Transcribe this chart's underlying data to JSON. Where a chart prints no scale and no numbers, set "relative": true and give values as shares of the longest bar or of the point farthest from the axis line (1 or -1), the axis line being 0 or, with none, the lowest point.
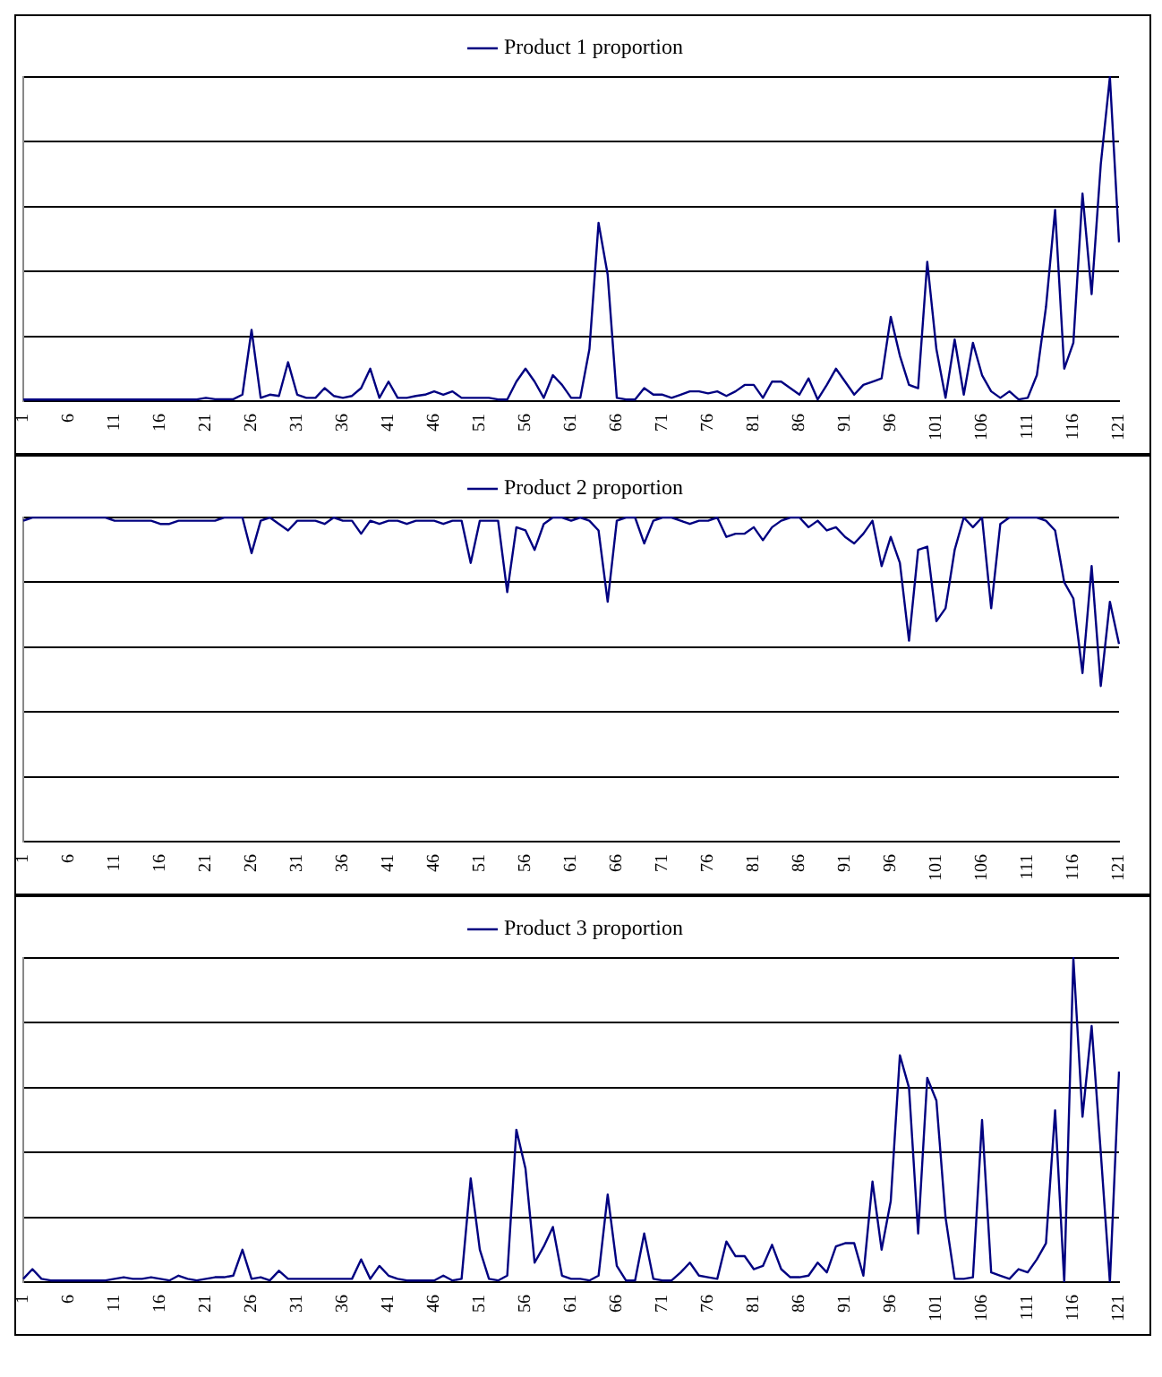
{
  "chart_data": [
    {
      "type": "line",
      "relative": true,
      "grid": "y",
      "legend": "top",
      "categories": [
        "1",
        null,
        null,
        null,
        null,
        "6",
        null,
        null,
        null,
        null,
        "11",
        null,
        null,
        null,
        null,
        "16",
        null,
        null,
        null,
        null,
        "21",
        null,
        null,
        null,
        null,
        "26",
        null,
        null,
        null,
        null,
        "31",
        null,
        null,
        null,
        null,
        "36",
        null,
        null,
        null,
        null,
        "41",
        null,
        null,
        null,
        null,
        "46",
        null,
        null,
        null,
        null,
        "51",
        null,
        null,
        null,
        null,
        "56",
        null,
        null,
        null,
        null,
        "61",
        null,
        null,
        null,
        null,
        "66",
        null,
        null,
        null,
        null,
        "71",
        null,
        null,
        null,
        null,
        "76",
        null,
        null,
        null,
        null,
        "81",
        null,
        null,
        null,
        null,
        "86",
        null,
        null,
        null,
        null,
        "91",
        null,
        null,
        null,
        null,
        "96",
        null,
        null,
        null,
        null,
        "101",
        null,
        null,
        null,
        null,
        "106",
        null,
        null,
        null,
        null,
        "111",
        null,
        null,
        null,
        null,
        "116",
        null,
        null,
        null,
        null,
        "121"
      ],
      "series": [
        {
          "name": "Product 1 proportion",
          "color": "#000080",
          "values": [
            0.005,
            0.005,
            0.005,
            0.005,
            0.005,
            0.005,
            0.005,
            0.005,
            0.005,
            0.005,
            0.005,
            0.005,
            0.005,
            0.005,
            0.005,
            0.005,
            0.005,
            0.005,
            0.005,
            0.005,
            0.01,
            0.006,
            0.006,
            0.006,
            0.02,
            0.22,
            0.01,
            0.02,
            0.016,
            0.12,
            0.02,
            0.01,
            0.01,
            0.04,
            0.016,
            0.01,
            0.016,
            0.04,
            0.1,
            0.01,
            0.06,
            0.01,
            0.01,
            0.016,
            0.02,
            0.03,
            0.02,
            0.03,
            0.01,
            0.01,
            0.01,
            0.01,
            0.005,
            0.005,
            0.06,
            0.1,
            0.06,
            0.01,
            0.08,
            0.05,
            0.01,
            0.01,
            0.16,
            0.55,
            0.39,
            0.01,
            0.005,
            0.005,
            0.04,
            0.02,
            0.02,
            0.01,
            0.02,
            0.03,
            0.03,
            0.024,
            0.03,
            0.016,
            0.03,
            0.05,
            0.05,
            0.01,
            0.06,
            0.06,
            0.04,
            0.02,
            0.07,
            0.005,
            0.05,
            0.1,
            0.06,
            0.02,
            0.05,
            0.06,
            0.07,
            0.26,
            0.14,
            0.05,
            0.04,
            0.43,
            0.16,
            0.01,
            0.19,
            0.02,
            0.18,
            0.08,
            0.03,
            0.01,
            0.03,
            0.005,
            0.01,
            0.08,
            0.29,
            0.59,
            0.1,
            0.18,
            0.64,
            0.33,
            0.73,
            1,
            0.49
          ]
        }
      ]
    },
    {
      "type": "line",
      "relative": true,
      "grid": "y",
      "legend": "top",
      "categories": [
        "1",
        null,
        null,
        null,
        null,
        "6",
        null,
        null,
        null,
        null,
        "11",
        null,
        null,
        null,
        null,
        "16",
        null,
        null,
        null,
        null,
        "21",
        null,
        null,
        null,
        null,
        "26",
        null,
        null,
        null,
        null,
        "31",
        null,
        null,
        null,
        null,
        "36",
        null,
        null,
        null,
        null,
        "41",
        null,
        null,
        null,
        null,
        "46",
        null,
        null,
        null,
        null,
        "51",
        null,
        null,
        null,
        null,
        "56",
        null,
        null,
        null,
        null,
        "61",
        null,
        null,
        null,
        null,
        "66",
        null,
        null,
        null,
        null,
        "71",
        null,
        null,
        null,
        null,
        "76",
        null,
        null,
        null,
        null,
        "81",
        null,
        null,
        null,
        null,
        "86",
        null,
        null,
        null,
        null,
        "91",
        null,
        null,
        null,
        null,
        "96",
        null,
        null,
        null,
        null,
        "101",
        null,
        null,
        null,
        null,
        "106",
        null,
        null,
        null,
        null,
        "111",
        null,
        null,
        null,
        null,
        "116",
        null,
        null,
        null,
        null,
        "121"
      ],
      "series": [
        {
          "name": "Product 2 proportion",
          "color": "#000080",
          "values": [
            0.99,
            1,
            1,
            1,
            1,
            1,
            1,
            1,
            1,
            1,
            0.99,
            0.99,
            0.99,
            0.99,
            0.99,
            0.98,
            0.98,
            0.99,
            0.99,
            0.99,
            0.99,
            0.99,
            1,
            1,
            1,
            0.89,
            0.99,
            1,
            0.98,
            0.96,
            0.99,
            0.99,
            0.99,
            0.98,
            1,
            0.99,
            0.99,
            0.95,
            0.99,
            0.98,
            0.99,
            0.99,
            0.98,
            0.99,
            0.99,
            0.99,
            0.98,
            0.99,
            0.99,
            0.86,
            0.99,
            0.99,
            0.99,
            0.77,
            0.97,
            0.96,
            0.9,
            0.98,
            1,
            1,
            0.99,
            1,
            0.99,
            0.96,
            0.74,
            0.99,
            1,
            1,
            0.92,
            0.99,
            1,
            1,
            0.99,
            0.98,
            0.99,
            0.99,
            1,
            0.94,
            0.95,
            0.95,
            0.97,
            0.93,
            0.97,
            0.99,
            1,
            1,
            0.97,
            0.99,
            0.96,
            0.97,
            0.94,
            0.92,
            0.95,
            0.99,
            0.85,
            0.94,
            0.86,
            0.62,
            0.9,
            0.91,
            0.68,
            0.72,
            0.9,
            1,
            0.97,
            1,
            0.72,
            0.98,
            1,
            1,
            1,
            1,
            0.99,
            0.96,
            0.8,
            0.75,
            0.52,
            0.85,
            0.48,
            0.74,
            0.61
          ]
        }
      ]
    },
    {
      "type": "line",
      "relative": true,
      "grid": "y",
      "legend": "top",
      "categories": [
        "1",
        null,
        null,
        null,
        null,
        "6",
        null,
        null,
        null,
        null,
        "11",
        null,
        null,
        null,
        null,
        "16",
        null,
        null,
        null,
        null,
        "21",
        null,
        null,
        null,
        null,
        "26",
        null,
        null,
        null,
        null,
        "31",
        null,
        null,
        null,
        null,
        "36",
        null,
        null,
        null,
        null,
        "41",
        null,
        null,
        null,
        null,
        "46",
        null,
        null,
        null,
        null,
        "51",
        null,
        null,
        null,
        null,
        "56",
        null,
        null,
        null,
        null,
        "61",
        null,
        null,
        null,
        null,
        "66",
        null,
        null,
        null,
        null,
        "71",
        null,
        null,
        null,
        null,
        "76",
        null,
        null,
        null,
        null,
        "81",
        null,
        null,
        null,
        null,
        "86",
        null,
        null,
        null,
        null,
        "91",
        null,
        null,
        null,
        null,
        "96",
        null,
        null,
        null,
        null,
        "101",
        null,
        null,
        null,
        null,
        "106",
        null,
        null,
        null,
        null,
        "111",
        null,
        null,
        null,
        null,
        "116",
        null,
        null,
        null,
        null,
        "121"
      ],
      "series": [
        {
          "name": "Product 3 proportion",
          "color": "#000080",
          "values": [
            0.01,
            0.04,
            0.01,
            0.005,
            0.005,
            0.005,
            0.005,
            0.005,
            0.005,
            0.005,
            0.01,
            0.015,
            0.01,
            0.01,
            0.015,
            0.01,
            0.005,
            0.02,
            0.01,
            0.005,
            0.01,
            0.015,
            0.015,
            0.02,
            0.1,
            0.01,
            0.015,
            0.005,
            0.035,
            0.01,
            0.01,
            0.01,
            0.01,
            0.01,
            0.01,
            0.01,
            0.01,
            0.07,
            0.01,
            0.05,
            0.02,
            0.01,
            0.005,
            0.005,
            0.005,
            0.005,
            0.02,
            0.005,
            0.01,
            0.32,
            0.1,
            0.01,
            0.005,
            0.02,
            0.47,
            0.35,
            0.06,
            0.11,
            0.17,
            0.02,
            0.01,
            0.01,
            0.005,
            0.02,
            0.27,
            0.05,
            0.005,
            0.005,
            0.15,
            0.01,
            0.005,
            0.005,
            0.03,
            0.06,
            0.02,
            0.015,
            0.01,
            0.125,
            0.08,
            0.08,
            0.04,
            0.05,
            0.115,
            0.04,
            0.015,
            0.015,
            0.02,
            0.06,
            0.03,
            0.11,
            0.12,
            0.12,
            0.02,
            0.31,
            0.1,
            0.25,
            0.7,
            0.6,
            0.15,
            0.63,
            0.56,
            0.2,
            0.01,
            0.01,
            0.015,
            0.5,
            0.03,
            0.02,
            0.01,
            0.04,
            0.03,
            0.07,
            0.12,
            0.53,
            0,
            1,
            0.51,
            0.79,
            0.4,
            0,
            0.65
          ]
        }
      ]
    }
  ]
}
